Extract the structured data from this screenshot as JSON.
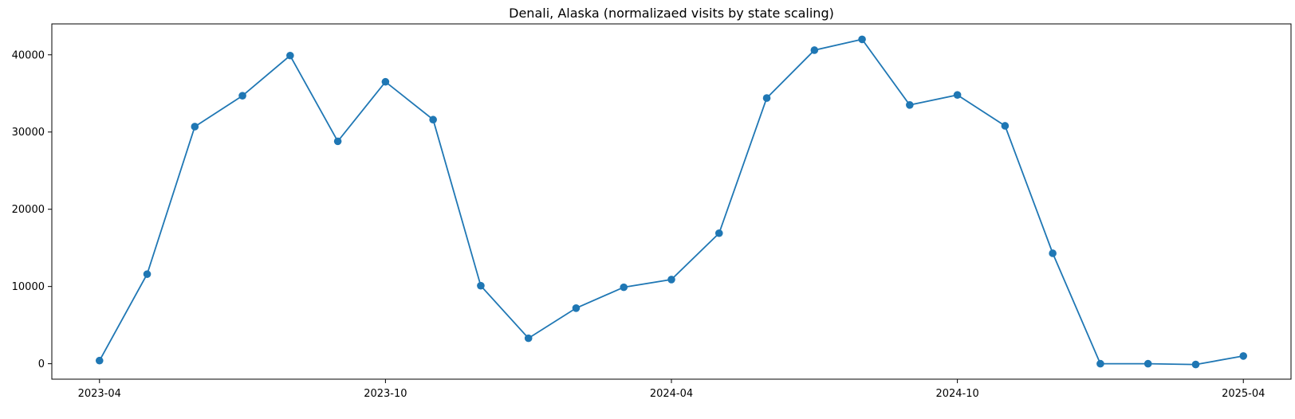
{
  "chart_data": {
    "type": "line",
    "title": "Denali, Alaska (normalizaed visits by state scaling)",
    "xlabel": "",
    "ylabel": "",
    "color": "#1f77b4",
    "marker": "circle",
    "grid": false,
    "legend": "none",
    "xlim": [
      "2023-03",
      "2025-05"
    ],
    "ylim": [
      -2000,
      44000
    ],
    "x_ticks": [
      {
        "value": "2023-04",
        "label": "2023-04"
      },
      {
        "value": "2023-10",
        "label": "2023-10"
      },
      {
        "value": "2024-04",
        "label": "2024-04"
      },
      {
        "value": "2024-10",
        "label": "2024-10"
      },
      {
        "value": "2025-04",
        "label": "2025-04"
      }
    ],
    "y_ticks": [
      {
        "value": 0,
        "label": "0"
      },
      {
        "value": 10000,
        "label": "10000"
      },
      {
        "value": 20000,
        "label": "20000"
      },
      {
        "value": 30000,
        "label": "30000"
      },
      {
        "value": 40000,
        "label": "40000"
      }
    ],
    "x": [
      "2023-04",
      "2023-05",
      "2023-06",
      "2023-07",
      "2023-08",
      "2023-09",
      "2023-10",
      "2023-11",
      "2023-12",
      "2024-01",
      "2024-02",
      "2024-03",
      "2024-04",
      "2024-05",
      "2024-06",
      "2024-07",
      "2024-08",
      "2024-09",
      "2024-10",
      "2024-11",
      "2024-12",
      "2025-01",
      "2025-02",
      "2025-03",
      "2025-04"
    ],
    "series": [
      {
        "values": [
          400,
          11600,
          30700,
          34700,
          39900,
          28800,
          36500,
          31600,
          10100,
          3300,
          7200,
          9900,
          10900,
          16900,
          34400,
          40600,
          42000,
          33500,
          34800,
          30800,
          14300,
          0,
          0,
          -100,
          1000
        ]
      }
    ]
  }
}
